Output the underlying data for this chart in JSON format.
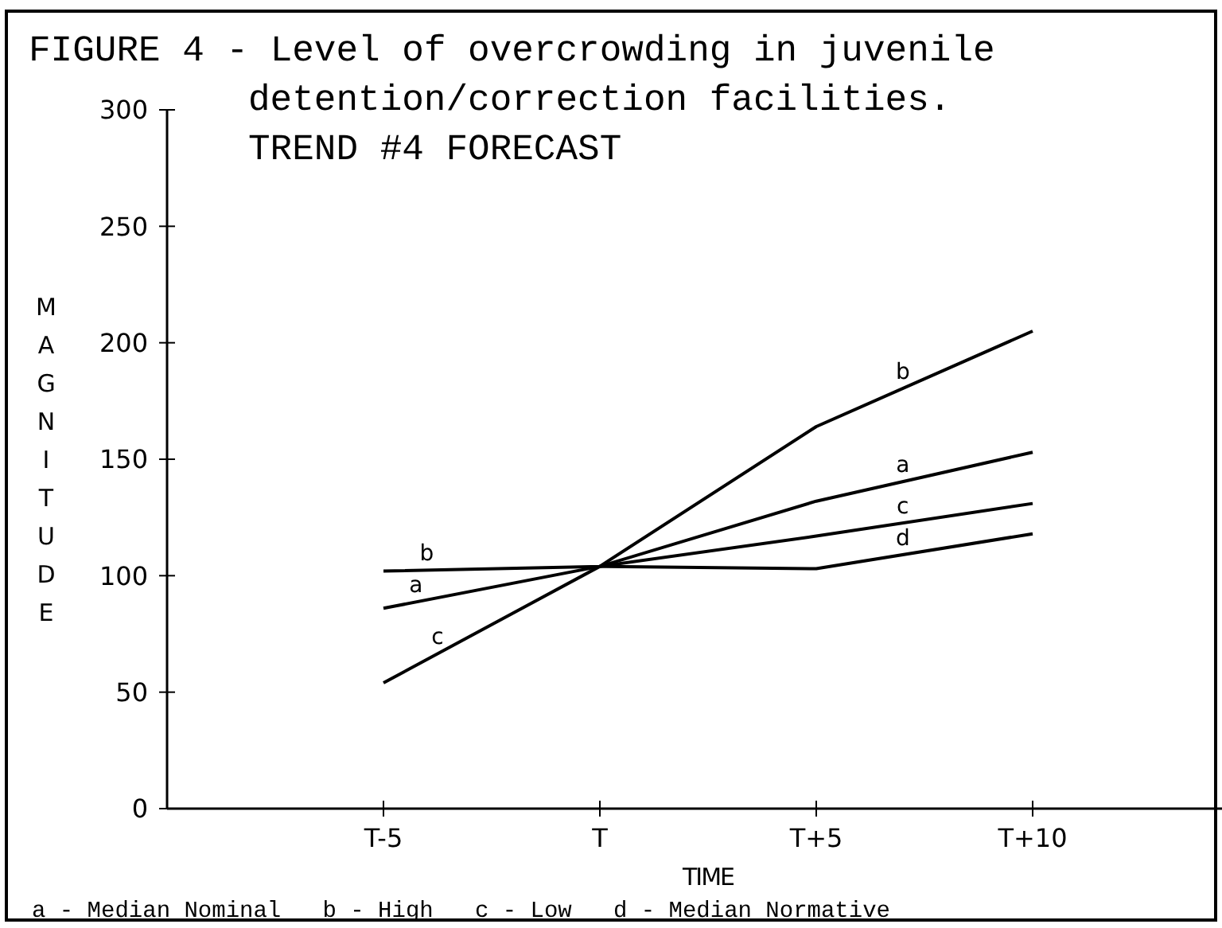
{
  "chart_data": {
    "type": "line",
    "title": "FIGURE 4 - Level of overcrowding in juvenile detention/correction facilities. TREND #4 FORECAST",
    "xlabel": "TIME",
    "ylabel": "MAGNITUDE",
    "categories": [
      "T-5",
      "T",
      "T+5",
      "T+10"
    ],
    "ylim": [
      0,
      300
    ],
    "yticks": [
      0,
      50,
      100,
      150,
      200,
      250,
      300
    ],
    "series": [
      {
        "name": "a",
        "color": "#000000",
        "values": [
          86,
          104,
          132,
          153
        ]
      },
      {
        "name": "b",
        "color": "#000000",
        "values": [
          102,
          104,
          164,
          205
        ]
      },
      {
        "name": "c",
        "color": "#000000",
        "values": [
          54,
          104,
          117,
          131
        ]
      },
      {
        "name": "d",
        "color": "#000000",
        "values": [
          null,
          104,
          103,
          118
        ]
      }
    ],
    "annotations": [
      "a - Median Nominal   b - High   c - Low   d - Median Normative"
    ],
    "grid": false,
    "line_style": "solid"
  }
}
